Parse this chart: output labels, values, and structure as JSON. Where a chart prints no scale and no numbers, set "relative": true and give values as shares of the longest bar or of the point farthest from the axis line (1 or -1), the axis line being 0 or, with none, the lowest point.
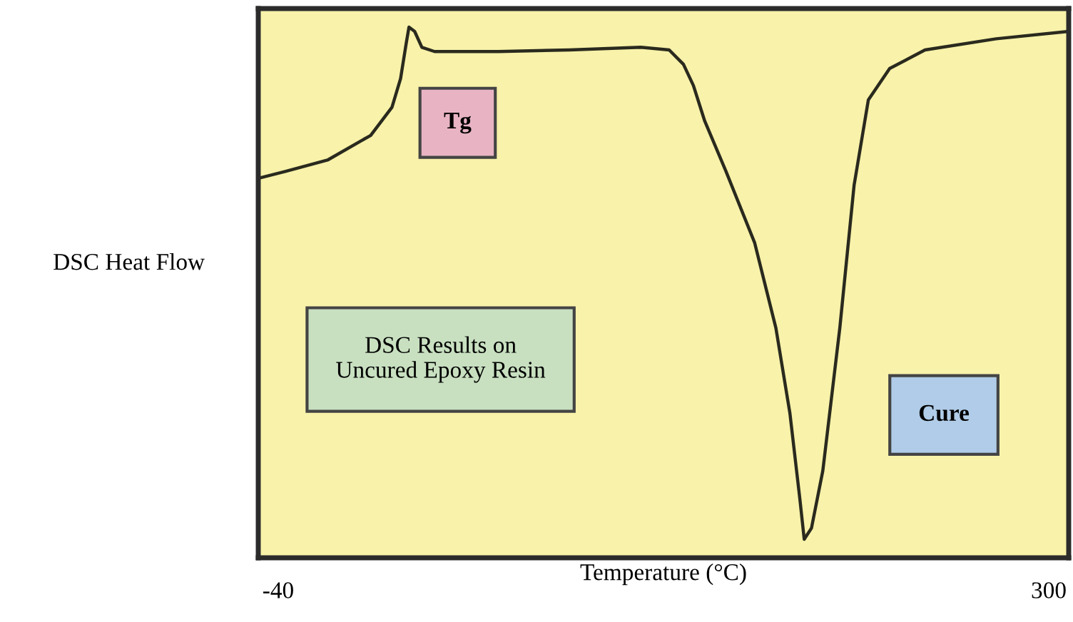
{
  "chart_data": {
    "type": "line",
    "relative": true,
    "xlabel": "Temperature (°C)",
    "ylabel": "DSC Heat Flow",
    "annotations": [
      "Tg",
      "DSC Results on\nUncured Epoxy Resin",
      "Cure"
    ],
    "xlim": [
      -48.8,
      308.8
    ],
    "xticks": [
      -40,
      300
    ],
    "tick_labels": "x",
    "line_style": "solid",
    "x": [
      -48.8,
      -36.9,
      -18.0,
      0.8,
      10.2,
      14.0,
      16.5,
      17.7,
      20.2,
      23.4,
      29.0,
      57.2,
      88.6,
      120.0,
      132.5,
      138.8,
      143.2,
      148.2,
      157.6,
      170.2,
      179.6,
      185.8,
      190.2,
      192.1,
      195.3,
      200.3,
      207.8,
      214.1,
      220.4,
      229.8,
      245.4,
      276.8,
      308.8
    ],
    "series": [
      {
        "color": "#2a2a1e",
        "values": [
          0.715,
          0.728,
          0.75,
          0.796,
          0.849,
          0.903,
          0.97,
          1,
          0.992,
          0.962,
          0.954,
          0.954,
          0.957,
          0.962,
          0.957,
          0.93,
          0.89,
          0.823,
          0.728,
          0.594,
          0.433,
          0.272,
          0.11,
          0.035,
          0.056,
          0.164,
          0.433,
          0.702,
          0.863,
          0.922,
          0.957,
          0.978,
          0.992
        ]
      }
    ]
  }
}
